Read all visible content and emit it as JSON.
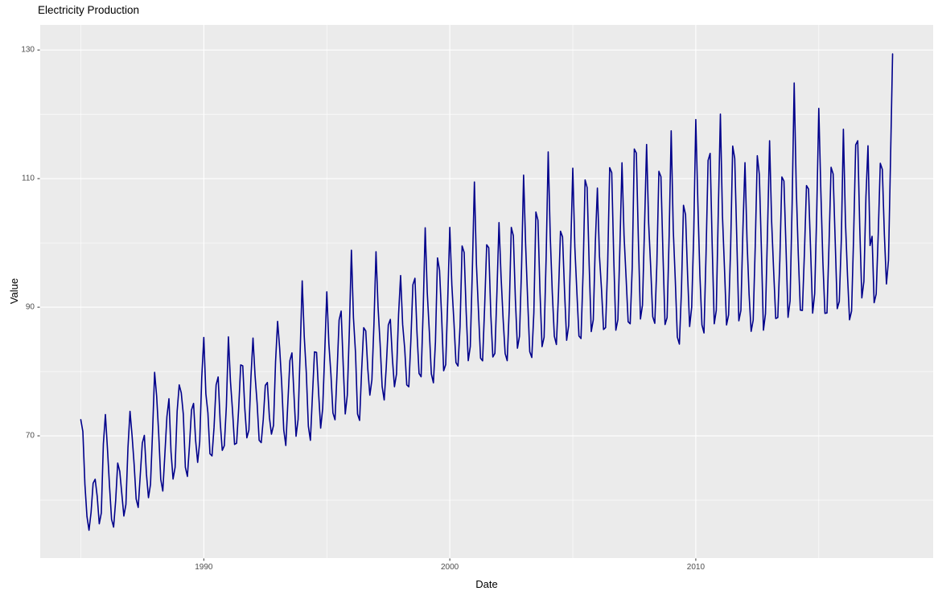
{
  "title": "Electricity Production",
  "chart_data": {
    "type": "line",
    "title": "Electricity Production",
    "xlabel": "Date",
    "ylabel": "Value",
    "legend": "none",
    "grid": "on",
    "panel_bg": "#EBEBEB",
    "grid_color": "#FFFFFF",
    "line_color": "#00008B",
    "tick_label_color": "#4D4D4D",
    "tick_mark_color": "#333333",
    "x_start": "1985-01",
    "frequency": "monthly",
    "points": 397,
    "x_major_ticks": [
      1990,
      2000,
      2010
    ],
    "x_minor_ticks": [
      1985,
      1995,
      2005,
      2015
    ],
    "y_major_ticks": [
      70,
      90,
      110,
      130
    ],
    "y_minor_ticks": [
      60,
      80,
      100,
      120
    ],
    "x_range": [
      1983.35,
      2019.65
    ],
    "y_range": [
      51.0,
      133.9
    ],
    "values": [
      72.51,
      70.67,
      62.45,
      57.47,
      55.32,
      58.09,
      62.62,
      63.25,
      60.58,
      56.32,
      58.0,
      68.71,
      73.31,
      67.99,
      62.22,
      57.03,
      55.81,
      59.9,
      65.77,
      64.48,
      61.0,
      57.53,
      59.34,
      68.14,
      73.82,
      70.06,
      65.61,
      60.16,
      58.87,
      63.89,
      68.87,
      70.07,
      64.12,
      60.38,
      62.46,
      70.58,
      79.87,
      76.16,
      70.29,
      63.24,
      61.41,
      67.11,
      72.98,
      75.77,
      67.52,
      63.28,
      65.11,
      73.86,
      77.92,
      76.68,
      73.35,
      65.11,
      63.69,
      68.47,
      74.03,
      75.04,
      69.31,
      65.87,
      69.07,
      79.1,
      85.3,
      76.55,
      73.58,
      67.21,
      66.88,
      71.34,
      77.92,
      79.15,
      72.14,
      67.74,
      68.46,
      74.59,
      85.4,
      78.5,
      73.96,
      68.67,
      68.86,
      74.2,
      81.03,
      80.88,
      74.25,
      69.69,
      70.91,
      79.18,
      85.2,
      79.39,
      75.11,
      69.31,
      68.94,
      72.54,
      77.84,
      78.3,
      72.87,
      70.26,
      71.63,
      81.5,
      87.8,
      83.65,
      78.13,
      70.91,
      68.5,
      75.16,
      81.7,
      82.9,
      76.28,
      69.94,
      72.58,
      83.0,
      94.1,
      85.44,
      79.79,
      71.49,
      69.3,
      76.28,
      83.06,
      82.97,
      76.68,
      71.2,
      74.26,
      83.06,
      92.4,
      84.36,
      79.62,
      73.55,
      72.5,
      79.87,
      88.0,
      89.4,
      81.02,
      73.4,
      76.33,
      86.44,
      98.87,
      88.37,
      82.94,
      73.4,
      72.4,
      80.21,
      86.82,
      86.32,
      80.4,
      76.32,
      78.7,
      87.41,
      98.63,
      90.04,
      84.35,
      77.65,
      75.57,
      80.71,
      87.23,
      88.11,
      82.01,
      77.64,
      79.61,
      88.82,
      94.93,
      87.33,
      83.58,
      77.92,
      77.63,
      84.75,
      93.5,
      94.5,
      86.04,
      79.7,
      79.19,
      89.42,
      102.35,
      92.33,
      86.31,
      79.63,
      78.25,
      84.6,
      97.67,
      95.75,
      88.66,
      80.12,
      81.09,
      91.18,
      102.41,
      93.46,
      87.82,
      81.39,
      80.86,
      87.03,
      99.53,
      98.51,
      89.18,
      81.69,
      83.9,
      95.77,
      109.48,
      96.62,
      89.29,
      82.09,
      81.66,
      90.1,
      99.71,
      99.25,
      88.88,
      82.26,
      82.83,
      92.42,
      103.16,
      94.83,
      88.23,
      82.8,
      81.69,
      89.72,
      102.41,
      101.11,
      91.2,
      83.63,
      85.49,
      96.11,
      110.55,
      99.62,
      91.01,
      83.09,
      82.19,
      89.11,
      104.81,
      103.52,
      92.36,
      83.88,
      85.33,
      97.79,
      114.16,
      101.11,
      92.27,
      85.49,
      84.2,
      92.0,
      101.82,
      100.93,
      92.32,
      84.86,
      87.17,
      99.28,
      111.62,
      99.33,
      92.31,
      85.53,
      85.13,
      95.2,
      109.8,
      108.6,
      96.51,
      86.21,
      88.04,
      100.11,
      108.52,
      97.99,
      92.82,
      86.53,
      86.84,
      96.49,
      111.7,
      110.91,
      97.36,
      86.43,
      88.07,
      99.66,
      112.46,
      101.14,
      94.59,
      87.74,
      87.43,
      96.24,
      114.6,
      113.98,
      100.36,
      88.17,
      90.33,
      102.62,
      115.31,
      103.08,
      96.21,
      88.53,
      87.5,
      96.66,
      111.13,
      110.29,
      98.1,
      87.31,
      88.39,
      101.11,
      117.44,
      102.13,
      94.2,
      85.36,
      84.27,
      92.56,
      105.86,
      104.4,
      95.05,
      87.0,
      90.0,
      101.53,
      119.18,
      106.33,
      95.02,
      87.25,
      86.0,
      98.31,
      112.83,
      113.92,
      99.66,
      87.43,
      89.5,
      105.27,
      120.03,
      104.33,
      96.02,
      87.25,
      88.8,
      99.31,
      115.06,
      113.12,
      100.66,
      87.89,
      89.5,
      102.27,
      112.48,
      100.33,
      92.02,
      86.25,
      88.0,
      99.51,
      113.56,
      110.62,
      99.06,
      86.43,
      89.0,
      101.87,
      115.89,
      103.33,
      95.52,
      88.25,
      88.4,
      97.31,
      110.26,
      109.62,
      99.36,
      88.43,
      91.0,
      106.07,
      124.88,
      108.63,
      98.22,
      89.55,
      89.5,
      98.51,
      108.92,
      108.37,
      98.96,
      89.08,
      92.1,
      104.87,
      120.92,
      108.13,
      97.02,
      89.05,
      89.11,
      99.91,
      111.76,
      110.72,
      100.36,
      89.78,
      90.9,
      100.57,
      117.68,
      103.33,
      95.02,
      88.05,
      89.41,
      101.11,
      115.26,
      115.89,
      102.26,
      91.45,
      94.0,
      107.17,
      115.11,
      99.6,
      101.02,
      90.7,
      92.05,
      101.41,
      112.38,
      111.43,
      101.26,
      93.62,
      97.3,
      113.07,
      129.4
    ]
  }
}
